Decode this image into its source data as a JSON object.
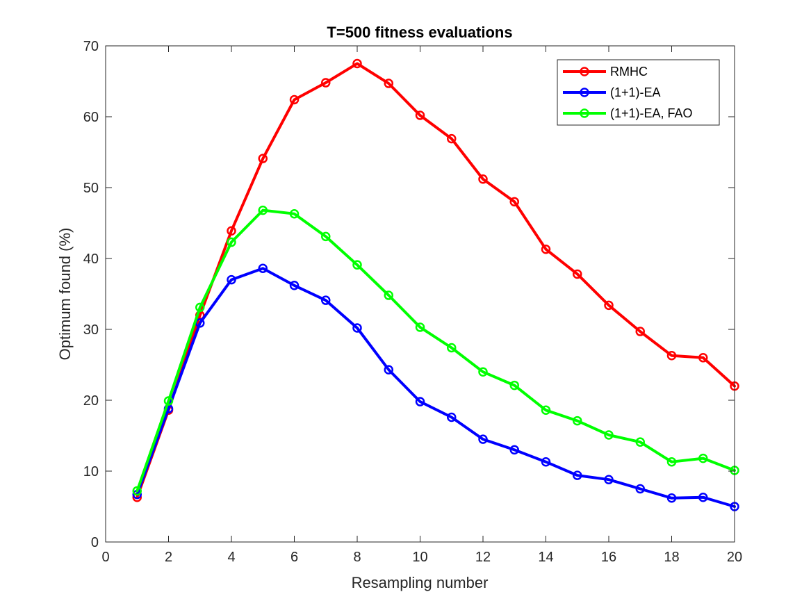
{
  "chart_data": {
    "type": "line",
    "title": "T=500 fitness evaluations",
    "xlabel": "Resampling number",
    "ylabel": "Optimum found (%)",
    "xlim": [
      0,
      20
    ],
    "ylim": [
      0,
      70
    ],
    "xticks": [
      0,
      2,
      4,
      6,
      8,
      10,
      12,
      14,
      16,
      18,
      20
    ],
    "yticks": [
      0,
      10,
      20,
      30,
      40,
      50,
      60,
      70
    ],
    "grid": false,
    "legend_position": "top-right",
    "x": [
      1,
      2,
      3,
      4,
      5,
      6,
      7,
      8,
      9,
      10,
      11,
      12,
      13,
      14,
      15,
      16,
      17,
      18,
      19,
      20
    ],
    "series": [
      {
        "name": "RMHC",
        "color": "#ff0000",
        "marker": "circle",
        "values": [
          6.3,
          18.6,
          32.0,
          43.9,
          54.1,
          62.4,
          64.8,
          67.5,
          64.7,
          60.2,
          56.9,
          51.2,
          48.0,
          41.3,
          37.8,
          33.4,
          29.7,
          26.3,
          26.0,
          22.0
        ]
      },
      {
        "name": "(1+1)-EA",
        "color": "#0000ff",
        "marker": "circle",
        "values": [
          6.7,
          18.8,
          30.9,
          37.0,
          38.6,
          36.2,
          34.1,
          30.2,
          24.3,
          19.8,
          17.6,
          14.5,
          13.0,
          11.3,
          9.4,
          8.8,
          7.5,
          6.2,
          6.3,
          5.0
        ]
      },
      {
        "name": "(1+1)-EA, FAO",
        "color": "#00ff00",
        "marker": "circle",
        "values": [
          7.2,
          19.9,
          33.1,
          42.3,
          46.8,
          46.3,
          43.1,
          39.1,
          34.8,
          30.3,
          27.4,
          24.0,
          22.1,
          18.6,
          17.1,
          15.1,
          14.1,
          11.3,
          11.8,
          10.1
        ]
      }
    ]
  }
}
